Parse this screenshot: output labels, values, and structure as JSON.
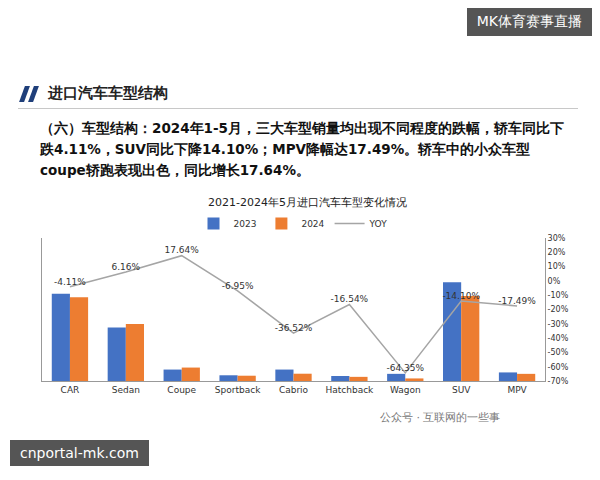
{
  "header": {
    "badge": "MK体育赛事直播",
    "section_title": "进口汽车车型结构",
    "paragraph": "（六）车型结构：2024年1-5月，三大车型销量均出现不同程度的跌幅，轿车同比下跌4.11%，SUV同比下降14.10%；MPV降幅达17.49%。轿车中的小众车型coupe轿跑表现出色，同比增长17.64%。",
    "watermarks": [
      "公众号 · 互联网的一些事",
      "cnportal-mk.com"
    ]
  },
  "chart_data": {
    "type": "bar",
    "title": "2021-2024年5月进口汽车车型变化情况",
    "categories": [
      "CAR",
      "Sedan",
      "Coupe",
      "Sportback",
      "Cabrio",
      "Hatchback",
      "Wagon",
      "SUV",
      "MPV"
    ],
    "series": [
      {
        "name": "2023",
        "color": "#4472c4",
        "values": [
          61,
          37.5,
          8,
          4,
          8,
          3.5,
          5,
          69,
          6
        ]
      },
      {
        "name": "2024",
        "color": "#ed7d31",
        "values": [
          58.5,
          39.8,
          9.4,
          3.7,
          5.1,
          2.9,
          1.8,
          59.5,
          5
        ]
      },
      {
        "name": "YOY",
        "type": "line",
        "color": "#a5a5a5",
        "axis": "y2",
        "values": [
          -4.11,
          6.16,
          17.64,
          -6.95,
          -36.52,
          -16.54,
          -64.35,
          -14.1,
          -17.49
        ],
        "value_labels": [
          "-4.11%",
          "6.16%",
          "17.64%",
          "-6.95%",
          "-36.52%",
          "-16.54%",
          "-64.35%",
          "-14.10%",
          "-17.49%"
        ]
      }
    ],
    "ylim": [
      0,
      100
    ],
    "yticks": [],
    "y2lim": [
      -70,
      30
    ],
    "y2ticks": [
      {
        "value": -70,
        "label": "-70%"
      },
      {
        "value": -60,
        "label": "-60%"
      },
      {
        "value": -50,
        "label": "-50%"
      },
      {
        "value": -40,
        "label": "-40%"
      },
      {
        "value": -30,
        "label": "-30%"
      },
      {
        "value": -20,
        "label": "-20%"
      },
      {
        "value": -10,
        "label": "-10%"
      },
      {
        "value": 0,
        "label": "0%"
      },
      {
        "value": 10,
        "label": "10%"
      },
      {
        "value": 20,
        "label": "20%"
      },
      {
        "value": 30,
        "label": "30%"
      }
    ],
    "legend": "top",
    "grid": false,
    "data_labels": true
  }
}
